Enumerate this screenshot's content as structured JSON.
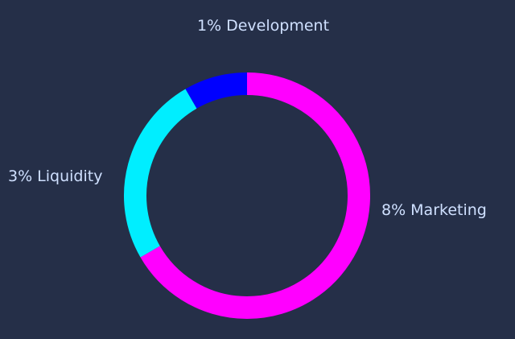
{
  "chart_data": {
    "type": "donut",
    "categories": [
      "Marketing",
      "Liquidity",
      "Development"
    ],
    "values": [
      8,
      3,
      1
    ],
    "value_labels": [
      "8%",
      "3%",
      "1%"
    ],
    "colors": [
      "#ff00ff",
      "#00eeff",
      "#0000ff"
    ]
  }
}
